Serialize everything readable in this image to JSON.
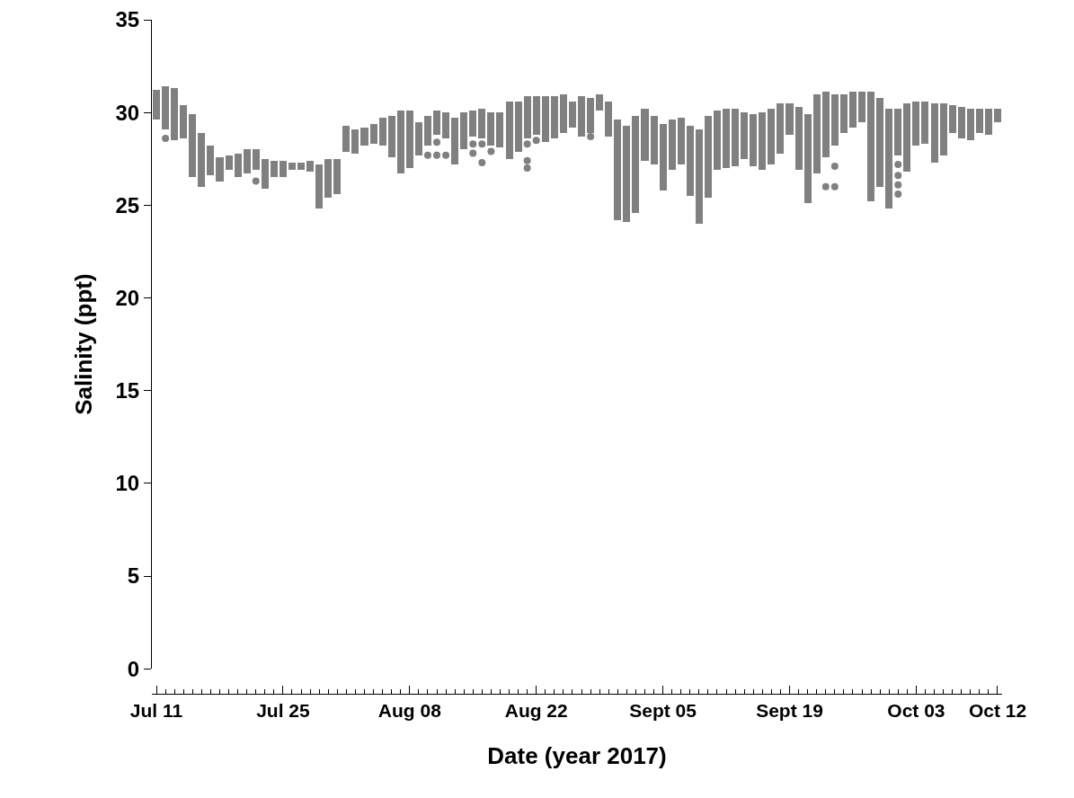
{
  "chart_data": {
    "type": "bar",
    "xlabel": "Date (year 2017)",
    "ylabel": "Salinity (ppt)",
    "xlim": [
      "2017-07-10T12:00",
      "2017-10-12T12:00"
    ],
    "xticks": [
      {
        "value": "2017-07-11",
        "label": "Jul 11"
      },
      {
        "value": "2017-07-25",
        "label": "Jul 25"
      },
      {
        "value": "2017-08-08",
        "label": "Aug 08"
      },
      {
        "value": "2017-08-22",
        "label": "Aug 22"
      },
      {
        "value": "2017-09-05",
        "label": "Sept 05"
      },
      {
        "value": "2017-09-19",
        "label": "Sept 19"
      },
      {
        "value": "2017-10-03",
        "label": "Oct 03"
      },
      {
        "value": "2017-10-12",
        "label": "Oct 12"
      }
    ],
    "ylim": [
      0,
      35
    ],
    "yticks": [
      0,
      5,
      10,
      15,
      20,
      25,
      30,
      35
    ],
    "grid": false,
    "marker": "circle",
    "series": [
      {
        "color": "#808080",
        "x": [
          "2017-07-11",
          "2017-07-12",
          "2017-07-13",
          "2017-07-14",
          "2017-07-15",
          "2017-07-16",
          "2017-07-17",
          "2017-07-18",
          "2017-07-19",
          "2017-07-20",
          "2017-07-21",
          "2017-07-22",
          "2017-07-23",
          "2017-07-24",
          "2017-07-25",
          "2017-07-26",
          "2017-07-27",
          "2017-07-28",
          "2017-07-29",
          "2017-07-30",
          "2017-07-31",
          "2017-08-01",
          "2017-08-02",
          "2017-08-03",
          "2017-08-04",
          "2017-08-05",
          "2017-08-06",
          "2017-08-07",
          "2017-08-08",
          "2017-08-09",
          "2017-08-10",
          "2017-08-11",
          "2017-08-12",
          "2017-08-13",
          "2017-08-14",
          "2017-08-15",
          "2017-08-16",
          "2017-08-17",
          "2017-08-18",
          "2017-08-19",
          "2017-08-20",
          "2017-08-21",
          "2017-08-22",
          "2017-08-23",
          "2017-08-24",
          "2017-08-25",
          "2017-08-26",
          "2017-08-27",
          "2017-08-28",
          "2017-08-29",
          "2017-08-30",
          "2017-08-31",
          "2017-09-01",
          "2017-09-02",
          "2017-09-03",
          "2017-09-04",
          "2017-09-05",
          "2017-09-06",
          "2017-09-07",
          "2017-09-08",
          "2017-09-09",
          "2017-09-10",
          "2017-09-11",
          "2017-09-12",
          "2017-09-13",
          "2017-09-14",
          "2017-09-15",
          "2017-09-16",
          "2017-09-17",
          "2017-09-18",
          "2017-09-19",
          "2017-09-20",
          "2017-09-21",
          "2017-09-22",
          "2017-09-23",
          "2017-09-24",
          "2017-09-25",
          "2017-09-26",
          "2017-09-27",
          "2017-09-28",
          "2017-09-29",
          "2017-09-30",
          "2017-10-01",
          "2017-10-02",
          "2017-10-03",
          "2017-10-04",
          "2017-10-05",
          "2017-10-06",
          "2017-10-07",
          "2017-10-08",
          "2017-10-09",
          "2017-10-10",
          "2017-10-11",
          "2017-10-12"
        ],
        "base": [
          29.6,
          29.1,
          28.5,
          28.6,
          26.5,
          26.0,
          26.6,
          26.3,
          26.9,
          26.5,
          26.7,
          26.9,
          25.9,
          26.5,
          26.5,
          26.9,
          26.9,
          26.8,
          24.8,
          25.4,
          25.6,
          27.9,
          27.8,
          28.2,
          28.3,
          28.2,
          27.6,
          26.7,
          27.0,
          27.7,
          28.2,
          28.8,
          28.6,
          27.2,
          28.0,
          28.7,
          28.6,
          28.2,
          28.1,
          27.5,
          27.9,
          28.6,
          28.8,
          28.4,
          28.6,
          28.9,
          29.2,
          28.7,
          28.9,
          30.1,
          28.7,
          24.2,
          24.1,
          24.6,
          27.4,
          27.2,
          25.8,
          26.9,
          27.2,
          25.5,
          24.0,
          25.4,
          26.9,
          27.0,
          27.1,
          27.5,
          27.1,
          26.9,
          27.2,
          27.8,
          28.8,
          26.9,
          25.1,
          26.7,
          27.6,
          28.2,
          28.9,
          29.2,
          29.5,
          25.2,
          26.0,
          24.8,
          27.7,
          26.8,
          28.2,
          28.3,
          27.3,
          27.7,
          28.9,
          28.6,
          28.5,
          28.9,
          28.8,
          29.5
        ],
        "values": [
          1.6,
          2.3,
          2.8,
          1.8,
          3.4,
          2.9,
          1.6,
          1.3,
          0.8,
          1.3,
          1.3,
          1.1,
          1.6,
          0.9,
          0.9,
          0.4,
          0.4,
          0.6,
          2.4,
          2.1,
          1.9,
          1.4,
          1.3,
          1.0,
          1.1,
          1.5,
          2.2,
          3.4,
          3.1,
          1.8,
          1.6,
          1.3,
          1.4,
          2.5,
          2.0,
          1.4,
          1.6,
          1.8,
          1.9,
          3.1,
          2.7,
          2.3,
          2.1,
          2.5,
          2.3,
          2.1,
          1.4,
          2.2,
          1.9,
          0.9,
          1.9,
          5.4,
          5.2,
          5.2,
          2.8,
          2.6,
          3.6,
          2.7,
          2.5,
          3.8,
          5.1,
          4.4,
          3.2,
          3.2,
          3.1,
          2.5,
          2.8,
          3.1,
          3.0,
          2.7,
          1.7,
          3.4,
          4.8,
          4.3,
          3.5,
          2.8,
          2.1,
          1.9,
          1.6,
          5.9,
          4.8,
          5.4,
          2.5,
          3.7,
          2.4,
          2.3,
          3.2,
          2.8,
          1.5,
          1.7,
          1.7,
          1.3,
          1.4,
          0.7
        ]
      },
      {
        "type": "scatter",
        "color": "#808080",
        "x": [
          "2017-07-12",
          "2017-07-22",
          "2017-08-10",
          "2017-08-11",
          "2017-08-11",
          "2017-08-12",
          "2017-08-15",
          "2017-08-15",
          "2017-08-16",
          "2017-08-16",
          "2017-08-17",
          "2017-08-21",
          "2017-08-21",
          "2017-08-21",
          "2017-08-22",
          "2017-08-28",
          "2017-09-23",
          "2017-09-24",
          "2017-09-24",
          "2017-10-01",
          "2017-10-01",
          "2017-10-01",
          "2017-10-01"
        ],
        "values": [
          28.6,
          26.3,
          27.7,
          28.4,
          27.7,
          27.7,
          28.3,
          27.8,
          28.3,
          27.3,
          27.9,
          28.3,
          27.4,
          27.0,
          28.5,
          28.7,
          26.0,
          27.1,
          26.0,
          27.2,
          26.6,
          26.1,
          25.6
        ]
      }
    ]
  }
}
